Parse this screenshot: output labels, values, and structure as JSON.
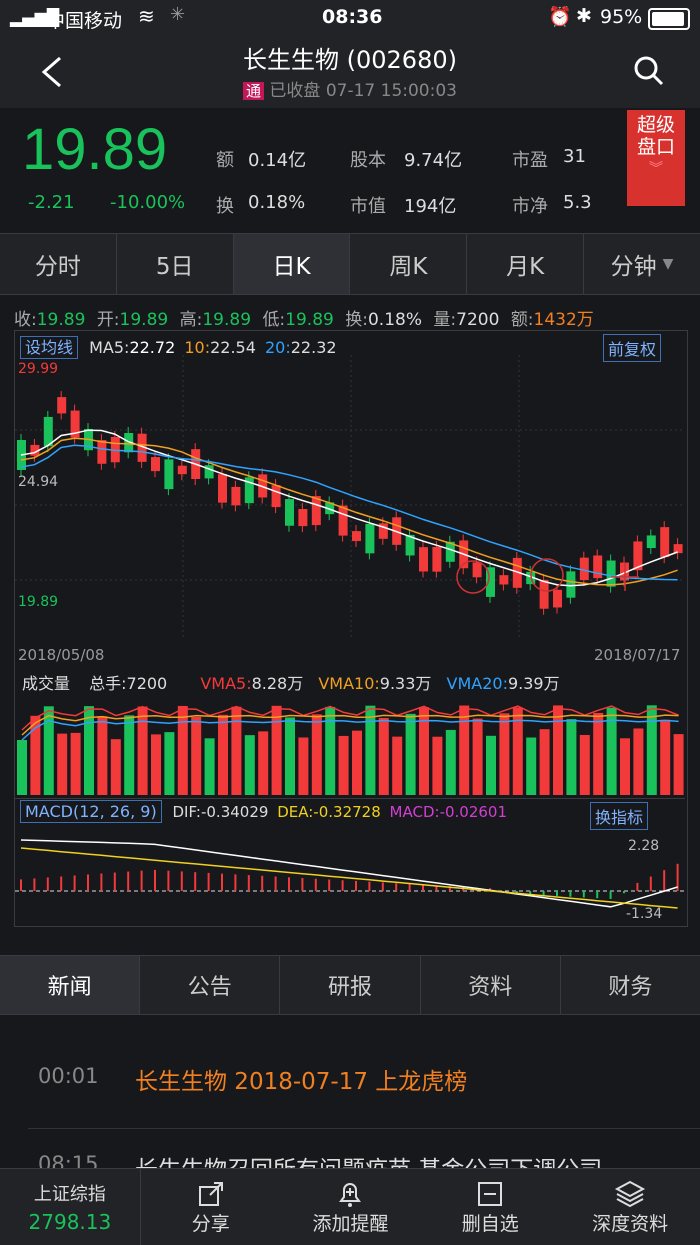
{
  "status_bar": {
    "carrier": "中国移动",
    "time": "08:36",
    "battery": "95%"
  },
  "header": {
    "title": "长生生物 (002680)",
    "tag": "通",
    "subtitle": "已收盘 07-17 15:00:03"
  },
  "quote": {
    "price": "19.89",
    "change": "-2.21",
    "change_pct": "-10.00%",
    "stats": [
      {
        "label": "额",
        "value": "0.14亿"
      },
      {
        "label": "股本",
        "value": "9.74亿"
      },
      {
        "label": "市盈",
        "value": "31"
      },
      {
        "label": "换",
        "value": "0.18%"
      },
      {
        "label": "市值",
        "value": "194亿"
      },
      {
        "label": "市净",
        "value": "5.3"
      }
    ],
    "super_label": "超级盘口"
  },
  "period_tabs": [
    "分时",
    "5日",
    "日K",
    "周K",
    "月K",
    "分钟"
  ],
  "ohlc": {
    "close_label": "收:",
    "close": "19.89",
    "open_label": "开:",
    "open": "19.89",
    "high_label": "高:",
    "high": "19.89",
    "low_label": "低:",
    "low": "19.89",
    "turnover_label": "换:",
    "turnover": "0.18%",
    "volume_label": "量:",
    "volume": "7200",
    "amount_label": "额:",
    "amount": "1432万"
  },
  "ma": {
    "set_label": "设均线",
    "ma5_label": "MA5:",
    "ma5": "22.72",
    "ma10_label": "10:",
    "ma10": "22.54",
    "ma20_label": "20:",
    "ma20": "22.32",
    "adjust_label": "前复权"
  },
  "price_axis": {
    "high": "29.99",
    "mid": "24.94",
    "low": "19.89"
  },
  "date_axis": {
    "start": "2018/05/08",
    "end": "2018/07/17"
  },
  "volume_panel": {
    "title": "成交量",
    "total_label": "总手:",
    "total": "7200",
    "vma5_label": "VMA5:",
    "vma5": "8.28万",
    "vma10_label": "VMA10:",
    "vma10": "9.33万",
    "vma20_label": "VMA20:",
    "vma20": "9.39万"
  },
  "macd": {
    "title": "MACD(12, 26, 9)",
    "dif_label": "DIF:",
    "dif": "-0.34029",
    "dea_label": "DEA:",
    "dea": "-0.32728",
    "macd_label": "MACD:",
    "macd": "-0.02601",
    "switch_label": "换指标",
    "top": "2.28",
    "bottom": "-1.34"
  },
  "info_tabs": [
    "新闻",
    "公告",
    "研报",
    "资料",
    "财务"
  ],
  "news": [
    {
      "time": "00:01",
      "title": "长生生物 2018-07-17 上龙虎榜"
    },
    {
      "time": "08:15",
      "title": "长生生物召回所有问题疫苗 基金公司下调公司"
    }
  ],
  "bottom_bar": {
    "index_name": "上证综指",
    "index_value": "2798.13",
    "items": [
      {
        "label": "分享",
        "icon": "share-icon"
      },
      {
        "label": "添加提醒",
        "icon": "bell-plus-icon"
      },
      {
        "label": "删自选",
        "icon": "minus-box-icon"
      },
      {
        "label": "深度资料",
        "icon": "layers-icon"
      }
    ]
  },
  "colors": {
    "up": "#f23a3a",
    "down": "#19c25a",
    "ma5": "#ffffff",
    "ma10": "#f0a020",
    "ma20": "#2fa3ff",
    "accent": "#f08020"
  }
}
